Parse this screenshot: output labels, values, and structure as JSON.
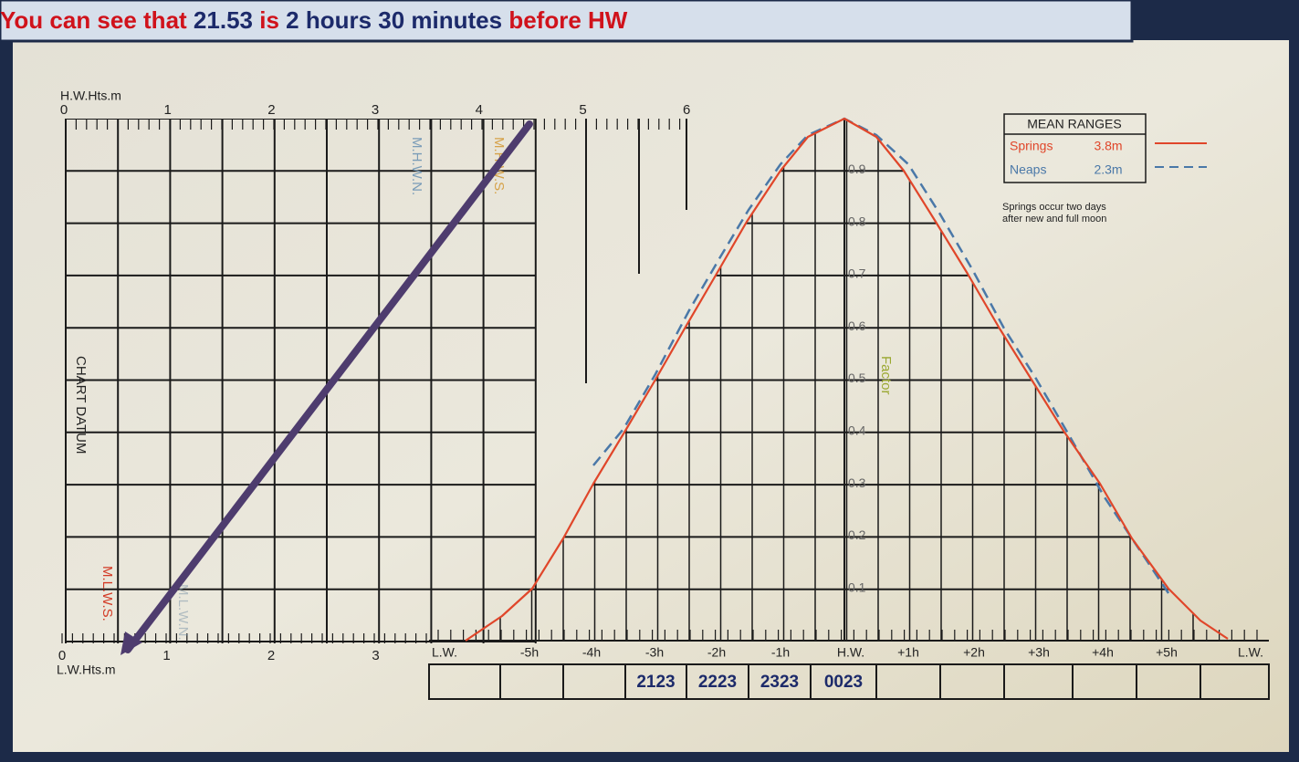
{
  "banner": {
    "segments": [
      "You can see that ",
      "21.53",
      " is ",
      "2 hours 30 minutes",
      " before HW"
    ]
  },
  "diagram": {
    "hw_heights_label": "H.W.Hts.m",
    "hw_scale": [
      "0",
      "1",
      "2",
      "3",
      "4",
      "5",
      "6"
    ],
    "lw_heights_label": "L.W.Hts.m",
    "lw_scale": [
      "0",
      "1",
      "2",
      "3"
    ],
    "chart_datum": "CHART DATUM",
    "level_labels": {
      "mlws": "M.L.W.S.",
      "mlwn": "M.L.W.N.",
      "mhwn": "M.H.W.N.",
      "mhws": "M.H.W.S."
    },
    "factor_label": "Factor",
    "factors": [
      "0.1",
      "0.2",
      "0.3",
      "0.4",
      "0.5",
      "0.6",
      "0.7",
      "0.8",
      "0.9"
    ],
    "time_labels": [
      "L.W.",
      "-5h",
      "-4h",
      "-3h",
      "-2h",
      "-1h",
      "H.W.",
      "+1h",
      "+2h",
      "+3h",
      "+4h",
      "+5h",
      "L.W."
    ],
    "time_boxes": [
      "2123",
      "2223",
      "2323",
      "0023"
    ],
    "legend": {
      "title": "MEAN RANGES",
      "rows": [
        {
          "name": "Springs",
          "range": "3.8m"
        },
        {
          "name": "Neaps",
          "range": "2.3m"
        }
      ],
      "note": [
        "Springs occur two days",
        "after new and full moon"
      ]
    }
  }
}
